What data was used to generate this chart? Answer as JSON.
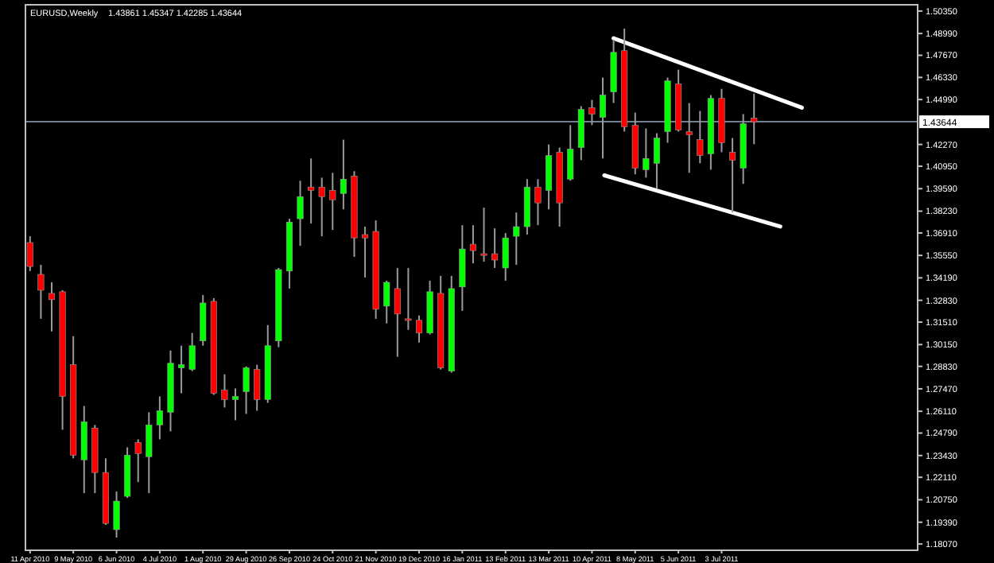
{
  "chart_data": {
    "type": "candlestick",
    "title": "EURUSD,Weekly",
    "subtitle": "1.43861 1.45347 1.42285 1.43644",
    "x": [
      "2010-04-11",
      "2010-04-18",
      "2010-04-25",
      "2010-05-02",
      "2010-05-09",
      "2010-05-16",
      "2010-05-23",
      "2010-05-30",
      "2010-06-06",
      "2010-06-13",
      "2010-06-20",
      "2010-06-27",
      "2010-07-04",
      "2010-07-11",
      "2010-07-18",
      "2010-07-25",
      "2010-08-01",
      "2010-08-08",
      "2010-08-15",
      "2010-08-22",
      "2010-08-29",
      "2010-09-05",
      "2010-09-12",
      "2010-09-19",
      "2010-09-26",
      "2010-10-03",
      "2010-10-10",
      "2010-10-17",
      "2010-10-24",
      "2010-10-31",
      "2010-11-07",
      "2010-11-14",
      "2010-11-21",
      "2010-11-28",
      "2010-12-05",
      "2010-12-12",
      "2010-12-19",
      "2010-12-26",
      "2011-01-02",
      "2011-01-09",
      "2011-01-16",
      "2011-01-23",
      "2011-01-30",
      "2011-02-06",
      "2011-02-13",
      "2011-02-20",
      "2011-02-27",
      "2011-03-06",
      "2011-03-13",
      "2011-03-20",
      "2011-03-27",
      "2011-04-03",
      "2011-04-10",
      "2011-04-17",
      "2011-04-24",
      "2011-05-01",
      "2011-05-08",
      "2011-05-15",
      "2011-05-22",
      "2011-05-29",
      "2011-06-05",
      "2011-06-12",
      "2011-06-19",
      "2011-06-26",
      "2011-07-03",
      "2011-07-10",
      "2011-07-17",
      "2011-07-24"
    ],
    "ohlc": [
      [
        1.3633,
        1.3671,
        1.346,
        1.3488
      ],
      [
        1.344,
        1.3498,
        1.3171,
        1.3344
      ],
      [
        1.3325,
        1.3392,
        1.3095,
        1.3287
      ],
      [
        1.3335,
        1.3344,
        1.2499,
        1.2701
      ],
      [
        1.2893,
        1.3066,
        1.2326,
        1.2345
      ],
      [
        1.2317,
        1.2643,
        1.2115,
        1.2547
      ],
      [
        1.2509,
        1.2528,
        1.2115,
        1.224
      ],
      [
        1.224,
        1.2326,
        1.1923,
        1.1932
      ],
      [
        1.1894,
        1.2125,
        1.1846,
        1.2067
      ],
      [
        1.2096,
        1.2393,
        1.2086,
        1.2345
      ],
      [
        1.2422,
        1.2441,
        1.2182,
        1.2355
      ],
      [
        1.2336,
        1.2605,
        1.2115,
        1.2528
      ],
      [
        1.2528,
        1.2701,
        1.2441,
        1.2614
      ],
      [
        1.2605,
        1.2979,
        1.2489,
        1.2902
      ],
      [
        1.2874,
        1.3008,
        1.272,
        1.2893
      ],
      [
        1.2864,
        1.3085,
        1.2854,
        1.3008
      ],
      [
        1.3037,
        1.3315,
        1.3008,
        1.3267
      ],
      [
        1.3277,
        1.3296,
        1.271,
        1.272
      ],
      [
        1.2739,
        1.2835,
        1.2634,
        1.2682
      ],
      [
        1.2682,
        1.2749,
        1.2557,
        1.2701
      ],
      [
        1.273,
        1.2883,
        1.2595,
        1.2874
      ],
      [
        1.2864,
        1.2893,
        1.2614,
        1.2682
      ],
      [
        1.2682,
        1.3133,
        1.2662,
        1.3008
      ],
      [
        1.3037,
        1.3479,
        1.2999,
        1.3469
      ],
      [
        1.346,
        1.3777,
        1.3354,
        1.3757
      ],
      [
        1.3777,
        1.4007,
        1.3613,
        1.3911
      ],
      [
        1.3969,
        1.4142,
        1.3748,
        1.3949
      ],
      [
        1.3969,
        1.4026,
        1.3671,
        1.3911
      ],
      [
        1.3949,
        1.4055,
        1.3709,
        1.3892
      ],
      [
        1.393,
        1.4256,
        1.3834,
        1.4017
      ],
      [
        1.4036,
        1.4065,
        1.3546,
        1.3661
      ],
      [
        1.3681,
        1.3729,
        1.3421,
        1.3661
      ],
      [
        1.37,
        1.3767,
        1.3171,
        1.3229
      ],
      [
        1.3248,
        1.3402,
        1.3143,
        1.3392
      ],
      [
        1.3354,
        1.3479,
        1.2941,
        1.32
      ],
      [
        1.3171,
        1.3479,
        1.3104,
        1.3162
      ],
      [
        1.3162,
        1.3191,
        1.3027,
        1.3085
      ],
      [
        1.3085,
        1.3402,
        1.3076,
        1.3335
      ],
      [
        1.3325,
        1.3431,
        1.2864,
        1.2874
      ],
      [
        1.2854,
        1.3431,
        1.2845,
        1.3354
      ],
      [
        1.3364,
        1.3738,
        1.3219,
        1.3594
      ],
      [
        1.3623,
        1.3738,
        1.3507,
        1.3584
      ],
      [
        1.3565,
        1.3844,
        1.3517,
        1.3555
      ],
      [
        1.3565,
        1.3719,
        1.3479,
        1.3527
      ],
      [
        1.3479,
        1.369,
        1.3402,
        1.3661
      ],
      [
        1.3671,
        1.3815,
        1.3498,
        1.3729
      ],
      [
        1.3729,
        1.4017,
        1.3681,
        1.3969
      ],
      [
        1.3969,
        1.4017,
        1.3738,
        1.3873
      ],
      [
        1.3949,
        1.4227,
        1.3834,
        1.416
      ],
      [
        1.418,
        1.4208,
        1.3729,
        1.3873
      ],
      [
        1.4017,
        1.4344,
        1.4007,
        1.4199
      ],
      [
        1.4208,
        1.4459,
        1.4132,
        1.4439
      ],
      [
        1.4449,
        1.4497,
        1.4344,
        1.4411
      ],
      [
        1.4391,
        1.4632,
        1.4142,
        1.4526
      ],
      [
        1.4545,
        1.4862,
        1.4478,
        1.4785
      ],
      [
        1.4795,
        1.4929,
        1.4305,
        1.4334
      ],
      [
        1.4344,
        1.442,
        1.4046,
        1.4084
      ],
      [
        1.4074,
        1.4324,
        1.4026,
        1.4142
      ],
      [
        1.4113,
        1.4295,
        1.3959,
        1.4266
      ],
      [
        1.4305,
        1.4632,
        1.4237,
        1.4612
      ],
      [
        1.4593,
        1.468,
        1.4305,
        1.4314
      ],
      [
        1.4305,
        1.4478,
        1.4055,
        1.4285
      ],
      [
        1.4256,
        1.443,
        1.4113,
        1.416
      ],
      [
        1.417,
        1.4526,
        1.4074,
        1.4506
      ],
      [
        1.4506,
        1.4564,
        1.418,
        1.4237
      ],
      [
        1.418,
        1.4266,
        1.3815,
        1.4132
      ],
      [
        1.4084,
        1.4411,
        1.3988,
        1.4353
      ],
      [
        1.43861,
        1.45347,
        1.42285,
        1.43644
      ]
    ],
    "colors": [
      "#ff0000",
      "#ff0000",
      "#ff0000",
      "#ff0000",
      "#ff0000",
      "#00ff00",
      "#ff0000",
      "#ff0000",
      "#00ff00",
      "#00ff00",
      "#ff0000",
      "#00ff00",
      "#00ff00",
      "#00ff00",
      "#00ff00",
      "#00ff00",
      "#00ff00",
      "#ff0000",
      "#ff0000",
      "#00ff00",
      "#00ff00",
      "#ff0000",
      "#00ff00",
      "#00ff00",
      "#00ff00",
      "#00ff00",
      "#ff0000",
      "#ff0000",
      "#ff0000",
      "#00ff00",
      "#ff0000",
      "#ff0000",
      "#ff0000",
      "#00ff00",
      "#ff0000",
      "#ff0000",
      "#ff0000",
      "#00ff00",
      "#ff0000",
      "#00ff00",
      "#00ff00",
      "#ff0000",
      "#ff0000",
      "#ff0000",
      "#00ff00",
      "#00ff00",
      "#00ff00",
      "#ff0000",
      "#00ff00",
      "#ff0000",
      "#00ff00",
      "#00ff00",
      "#ff0000",
      "#00ff00",
      "#00ff00",
      "#ff0000",
      "#ff0000",
      "#00ff00",
      "#00ff00",
      "#00ff00",
      "#ff0000",
      "#ff0000",
      "#ff0000",
      "#00ff00",
      "#ff0000",
      "#ff0000",
      "#00ff00",
      "#ff0000"
    ],
    "series": [
      {
        "type": "line",
        "x": [
          "2011-04-24",
          "2011-08-24"
        ],
        "values": [
          1.487,
          1.445
        ],
        "color": "#ffffff"
      },
      {
        "type": "line",
        "x": [
          "2011-04-18",
          "2011-08-10"
        ],
        "values": [
          1.404,
          1.373
        ],
        "color": "#ffffff"
      }
    ],
    "xlim": [
      "2010-04-08",
      "2011-11-07"
    ],
    "xticks": [
      {
        "value": "2010-04-11",
        "label": "11 Apr 2010"
      },
      {
        "value": "2010-05-09",
        "label": "9 May 2010"
      },
      {
        "value": "2010-06-06",
        "label": "6 Jun 2010"
      },
      {
        "value": "2010-07-04",
        "label": "4 Jul 2010"
      },
      {
        "value": "2010-08-01",
        "label": "1 Aug 2010"
      },
      {
        "value": "2010-08-29",
        "label": "29 Aug 2010"
      },
      {
        "value": "2010-09-26",
        "label": "26 Sep 2010"
      },
      {
        "value": "2010-10-24",
        "label": "24 Oct 2010"
      },
      {
        "value": "2010-11-21",
        "label": "21 Nov 2010"
      },
      {
        "value": "2010-12-19",
        "label": "19 Dec 2010"
      },
      {
        "value": "2011-01-16",
        "label": "16 Jan 2011"
      },
      {
        "value": "2011-02-13",
        "label": "13 Feb 2011"
      },
      {
        "value": "2011-03-13",
        "label": "13 Mar 2011"
      },
      {
        "value": "2011-04-10",
        "label": "10 Apr 2011"
      },
      {
        "value": "2011-05-08",
        "label": "8 May 2011"
      },
      {
        "value": "2011-06-05",
        "label": "5 Jun 2011"
      },
      {
        "value": "2011-07-03",
        "label": "3 Jul 2011"
      }
    ],
    "ylim": [
      1.1769,
      1.5073
    ],
    "yticks": [
      {
        "value": 1.5035,
        "label": "1.50350"
      },
      {
        "value": 1.4899,
        "label": "1.48990"
      },
      {
        "value": 1.4767,
        "label": "1.47670"
      },
      {
        "value": 1.4633,
        "label": "1.46330"
      },
      {
        "value": 1.4499,
        "label": "1.44990"
      },
      {
        "value": 1.4227,
        "label": "1.42270"
      },
      {
        "value": 1.4095,
        "label": "1.40950"
      },
      {
        "value": 1.3959,
        "label": "1.39590"
      },
      {
        "value": 1.3823,
        "label": "1.38230"
      },
      {
        "value": 1.3691,
        "label": "1.36910"
      },
      {
        "value": 1.3555,
        "label": "1.35550"
      },
      {
        "value": 1.3419,
        "label": "1.34190"
      },
      {
        "value": 1.3283,
        "label": "1.32830"
      },
      {
        "value": 1.3151,
        "label": "1.31510"
      },
      {
        "value": 1.3015,
        "label": "1.30150"
      },
      {
        "value": 1.2883,
        "label": "1.28830"
      },
      {
        "value": 1.2747,
        "label": "1.27470"
      },
      {
        "value": 1.2611,
        "label": "1.26110"
      },
      {
        "value": 1.2479,
        "label": "1.24790"
      },
      {
        "value": 1.2343,
        "label": "1.23430"
      },
      {
        "value": 1.2211,
        "label": "1.22110"
      },
      {
        "value": 1.2075,
        "label": "1.20750"
      },
      {
        "value": 1.1939,
        "label": "1.19390"
      },
      {
        "value": 1.1807,
        "label": "1.18070"
      }
    ],
    "ref_lines": [
      {
        "axis": "y",
        "value": 1.43644,
        "label": "1.43644",
        "color": "#708090"
      }
    ]
  }
}
